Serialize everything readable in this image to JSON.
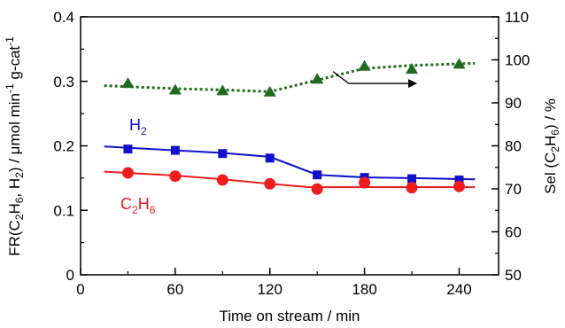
{
  "chart_data": {
    "type": "line",
    "xlabel": "Time on stream / min",
    "ylabel_left_prefix": "FR(C",
    "ylabel_left_sub1": "2",
    "ylabel_left_mid1": "H",
    "ylabel_left_sub2": "6",
    "ylabel_left_mid2": ", H",
    "ylabel_left_sub3": "2",
    "ylabel_left_suffix": ") / μmol min",
    "ylabel_left_sup1": "-1",
    "ylabel_left_mid3": " g-cat",
    "ylabel_left_sup2": "-1",
    "ylabel_right_prefix": "Sel (C",
    "ylabel_right_sub1": "2",
    "ylabel_right_mid": "H",
    "ylabel_right_sub2": "6",
    "ylabel_right_suffix": ") / %",
    "xlim": [
      0,
      265
    ],
    "ylim_left": [
      0,
      0.4
    ],
    "ylim_right": [
      50,
      110
    ],
    "x_ticks": [
      "0",
      "60",
      "120",
      "180",
      "240"
    ],
    "y_left_ticks": [
      "0",
      "0.1",
      "0.2",
      "0.3",
      "0.4"
    ],
    "y_right_ticks": [
      "50",
      "60",
      "70",
      "80",
      "90",
      "100",
      "110"
    ],
    "grid": false,
    "series": [
      {
        "name": "H2",
        "label_main": "H",
        "label_sub": "2",
        "axis": "left",
        "color": "#1010cc",
        "marker": "square",
        "x": [
          30,
          60,
          90,
          120,
          150,
          180,
          210,
          240
        ],
        "values": [
          0.195,
          0.193,
          0.188,
          0.181,
          0.155,
          0.151,
          0.149,
          0.147
        ],
        "fit": [
          [
            15,
            0.199
          ],
          [
            60,
            0.193
          ],
          [
            90,
            0.189
          ],
          [
            120,
            0.183
          ],
          [
            150,
            0.155
          ],
          [
            180,
            0.151
          ],
          [
            210,
            0.15
          ],
          [
            250,
            0.148
          ]
        ]
      },
      {
        "name": "C2H6",
        "label_main1": "C",
        "label_sub1": "2",
        "label_main2": "H",
        "label_sub2": "6",
        "axis": "left",
        "color": "#ee1c1c",
        "marker": "circle",
        "x": [
          30,
          60,
          90,
          120,
          150,
          180,
          210,
          240
        ],
        "values": [
          0.158,
          0.153,
          0.147,
          0.141,
          0.133,
          0.143,
          0.135,
          0.137
        ],
        "fit": [
          [
            15,
            0.16
          ],
          [
            60,
            0.154
          ],
          [
            90,
            0.148
          ],
          [
            120,
            0.141
          ],
          [
            145,
            0.136
          ],
          [
            150,
            0.136
          ],
          [
            180,
            0.136
          ],
          [
            250,
            0.136
          ]
        ]
      },
      {
        "name": "Sel (C2H6)",
        "axis": "right",
        "color": "#1e6b1e",
        "marker": "triangle",
        "x": [
          30,
          60,
          90,
          120,
          150,
          180,
          210,
          240
        ],
        "values": [
          94.5,
          93.0,
          92.8,
          92.5,
          95.5,
          98.5,
          97.8,
          99.0
        ],
        "fit": [
          [
            15,
            94.0
          ],
          [
            60,
            93.3
          ],
          [
            90,
            93.0
          ],
          [
            120,
            92.6
          ],
          [
            150,
            95.3
          ],
          [
            180,
            98.0
          ],
          [
            210,
            98.7
          ],
          [
            250,
            99.2
          ]
        ]
      }
    ],
    "arrow": {
      "from": [
        160,
        97.3
      ],
      "mid": [
        170,
        94.5
      ],
      "to": [
        210,
        94.5
      ],
      "direction": "right-axis"
    }
  }
}
